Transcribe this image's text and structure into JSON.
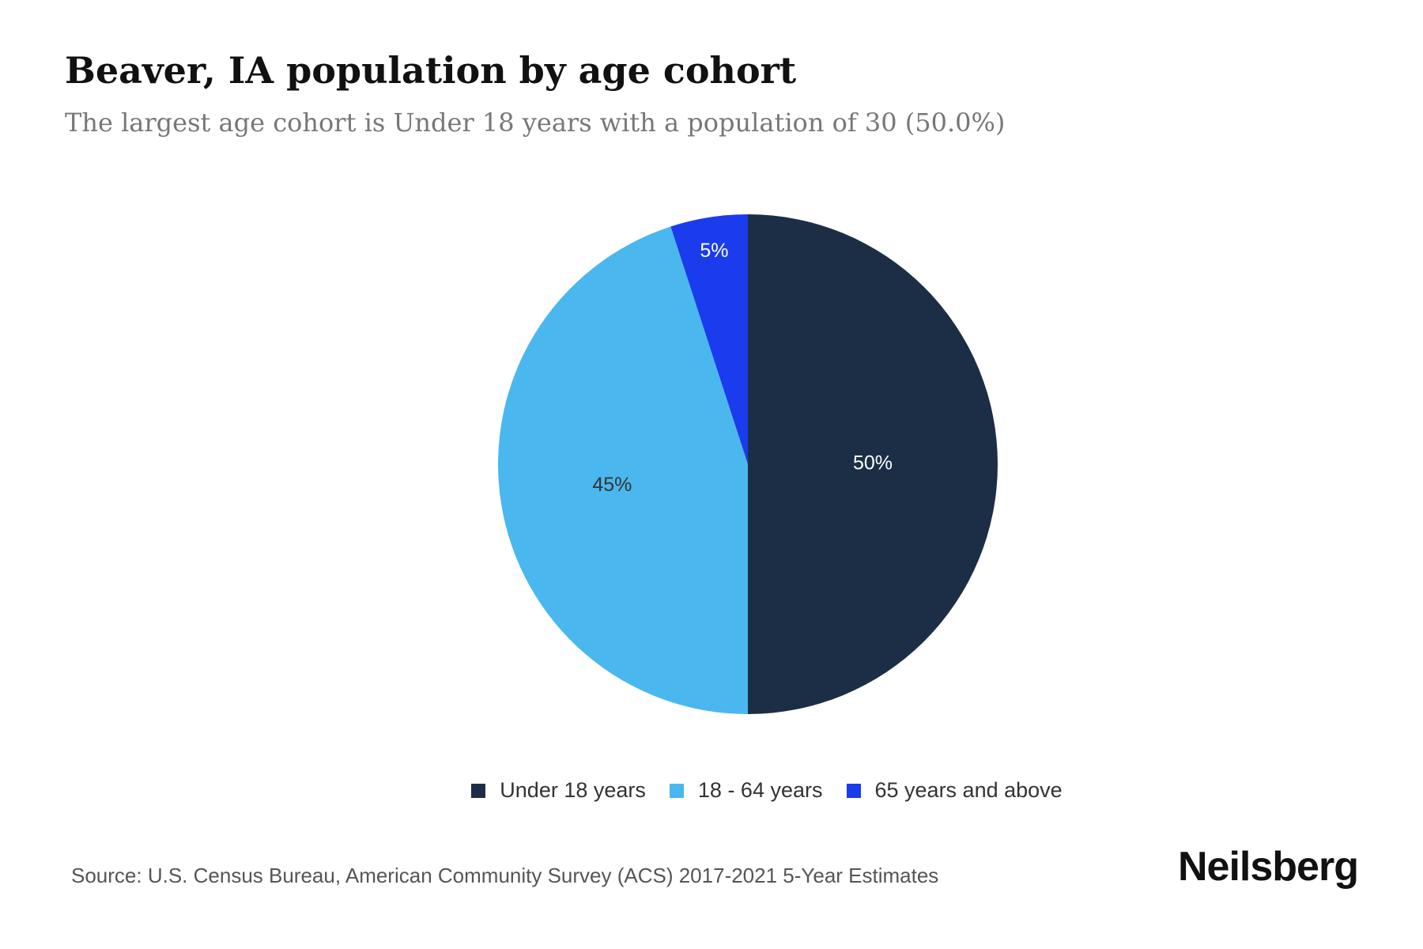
{
  "title": "Beaver, IA population by age cohort",
  "subtitle": "The largest age cohort is Under 18 years with a population of 30 (50.0%)",
  "source": "Source: U.S. Census Bureau, American Community Survey (ACS) 2017-2021 5-Year Estimates",
  "brand": "Neilsberg",
  "chart_data": {
    "type": "pie",
    "title": "Beaver, IA population by age cohort",
    "categories": [
      "Under 18 years",
      "18 - 64 years",
      "65 years and above"
    ],
    "values": [
      30,
      27,
      3
    ],
    "labels": [
      "50%",
      "45%",
      "5%"
    ],
    "colors": [
      "#1b2e46",
      "#4ab8ee",
      "#1a3ced"
    ],
    "label_colors": [
      "#ffffff",
      "#333333",
      "#ffffff"
    ],
    "legend_position": "bottom"
  }
}
